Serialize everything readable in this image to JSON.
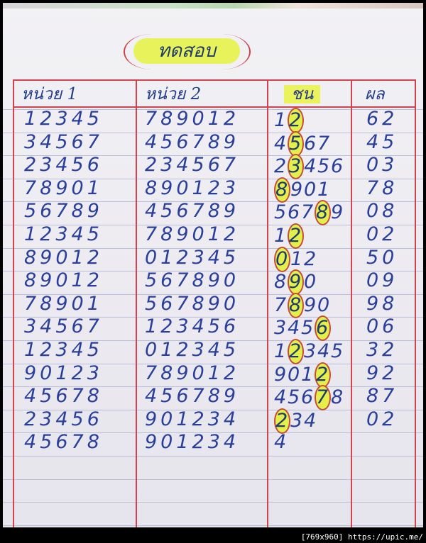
{
  "title": "ทดสอบ",
  "columns": [
    "หน่วย 1",
    "หน่วย 2",
    "ชน",
    "ผล"
  ],
  "rows": [
    {
      "unit1": "12345",
      "unit2": "789012",
      "hit": "12",
      "hit_marked": [
        1
      ],
      "result": "62"
    },
    {
      "unit1": "34567",
      "unit2": "456789",
      "hit": "4567",
      "hit_marked": [
        1
      ],
      "result": "45"
    },
    {
      "unit1": "23456",
      "unit2": "234567",
      "hit": "23456",
      "hit_marked": [
        1
      ],
      "result": "03"
    },
    {
      "unit1": "78901",
      "unit2": "890123",
      "hit": "8901",
      "hit_marked": [
        0
      ],
      "result": "78"
    },
    {
      "unit1": "56789",
      "unit2": "456789",
      "hit": "56789",
      "hit_marked": [
        3
      ],
      "result": "08"
    },
    {
      "unit1": "12345",
      "unit2": "789012",
      "hit": "12",
      "hit_marked": [
        1
      ],
      "result": "02"
    },
    {
      "unit1": "89012",
      "unit2": "012345",
      "hit": "012",
      "hit_marked": [
        0
      ],
      "result": "50"
    },
    {
      "unit1": "89012",
      "unit2": "567890",
      "hit": "890",
      "hit_marked": [
        1
      ],
      "result": "09"
    },
    {
      "unit1": "78901",
      "unit2": "567890",
      "hit": "7890",
      "hit_marked": [
        1
      ],
      "result": "98"
    },
    {
      "unit1": "34567",
      "unit2": "123456",
      "hit": "3456",
      "hit_marked": [
        3
      ],
      "result": "06"
    },
    {
      "unit1": "12345",
      "unit2": "012345",
      "hit": "12345",
      "hit_marked": [
        1
      ],
      "result": "32"
    },
    {
      "unit1": "90123",
      "unit2": "789012",
      "hit": "9012",
      "hit_marked": [
        3
      ],
      "result": "92"
    },
    {
      "unit1": "45678",
      "unit2": "456789",
      "hit": "45678",
      "hit_marked": [
        3
      ],
      "result": "87"
    },
    {
      "unit1": "23456",
      "unit2": "901234",
      "hit": "234",
      "hit_marked": [
        0
      ],
      "result": "02"
    },
    {
      "unit1": "45678",
      "unit2": "901234",
      "hit": "4",
      "hit_marked": [],
      "result": ""
    }
  ],
  "watermark": "[769x960] https://upic.me/",
  "colors": {
    "ink": "#2a3f9c",
    "highlight": "#e4f04a",
    "margin_line": "#d2424f"
  }
}
